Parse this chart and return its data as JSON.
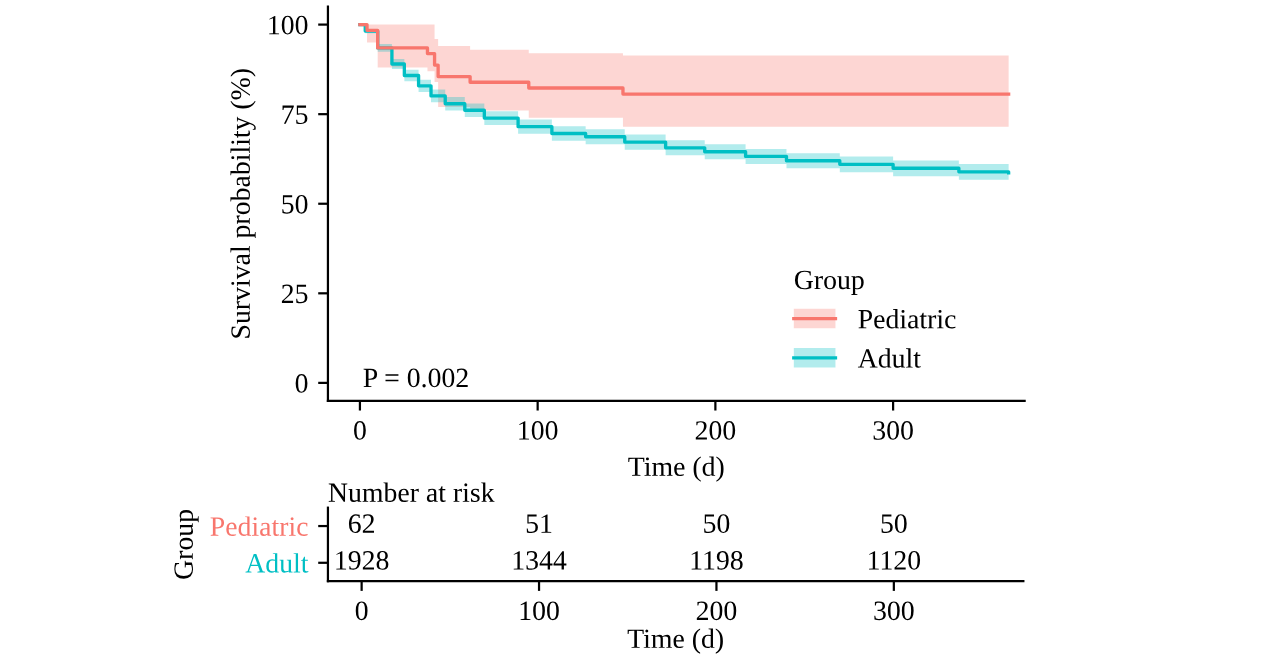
{
  "chart_data": [
    {
      "type": "step",
      "xlabel": "Time (d)",
      "ylabel": "Survival probability (%)",
      "legend_title": "Group",
      "legend": "bottom right",
      "grid": false,
      "xlim": [
        -18,
        374
      ],
      "xticks": [
        0,
        100,
        200,
        300
      ],
      "ylim": [
        -5,
        105
      ],
      "yticks": [
        0,
        25,
        50,
        75,
        100
      ],
      "annotations": [
        "P = 0.002"
      ],
      "series": [
        {
          "name": "Pediatric",
          "color": "#f8766d",
          "x": [
            0,
            4,
            10,
            38,
            42,
            44,
            62,
            95,
            148,
            365
          ],
          "values": [
            100,
            98.4,
            93.5,
            91.9,
            88.7,
            85.5,
            83.9,
            82.3,
            80.6,
            80.6
          ],
          "lower": [
            100,
            95,
            88,
            87,
            84,
            77,
            76,
            74,
            71.5,
            71.5
          ],
          "upper": [
            100,
            100,
            100,
            100,
            96,
            94,
            93,
            92,
            91.4,
            91.4
          ]
        },
        {
          "name": "Adult",
          "color": "#00bfc4",
          "x": [
            0,
            3,
            10,
            18,
            25,
            33,
            40,
            48,
            59,
            70,
            89,
            108,
            127,
            149,
            172,
            194,
            217,
            240,
            270,
            300,
            337,
            365
          ],
          "values": [
            100,
            98.2,
            93.5,
            89,
            85.8,
            82.9,
            80.1,
            77.9,
            76.1,
            73.9,
            71.5,
            69.6,
            68.7,
            67.2,
            65.6,
            64.5,
            63.2,
            62,
            61,
            59.9,
            58.9,
            58.6
          ],
          "lower": [
            100,
            97.6,
            92.4,
            87.6,
            84.2,
            81.2,
            78.3,
            76,
            74.2,
            72,
            69.5,
            67.6,
            66.6,
            65.1,
            63.5,
            62.4,
            61.1,
            59.9,
            58.8,
            57.7,
            56.7,
            56.3
          ],
          "upper": [
            100,
            98.8,
            94.6,
            90.4,
            87.4,
            84.6,
            81.9,
            79.8,
            78,
            75.8,
            73.5,
            71.6,
            70.8,
            69.3,
            67.7,
            66.6,
            65.3,
            64.1,
            63.2,
            62.1,
            61.1,
            60.9
          ]
        }
      ]
    },
    {
      "type": "heatmap",
      "title": "Number at risk",
      "ylabel": "Group",
      "xlabel": "Time (d)",
      "categories": [
        "0",
        "100",
        "200",
        "300"
      ],
      "y_categories": [
        "Pediatric",
        "Adult"
      ],
      "colors": [
        "#f8766d",
        "#00bfc4"
      ],
      "data_labels": true,
      "cells": [
        [
          62,
          51,
          50,
          50
        ],
        [
          1928,
          1344,
          1198,
          1120
        ]
      ]
    }
  ]
}
